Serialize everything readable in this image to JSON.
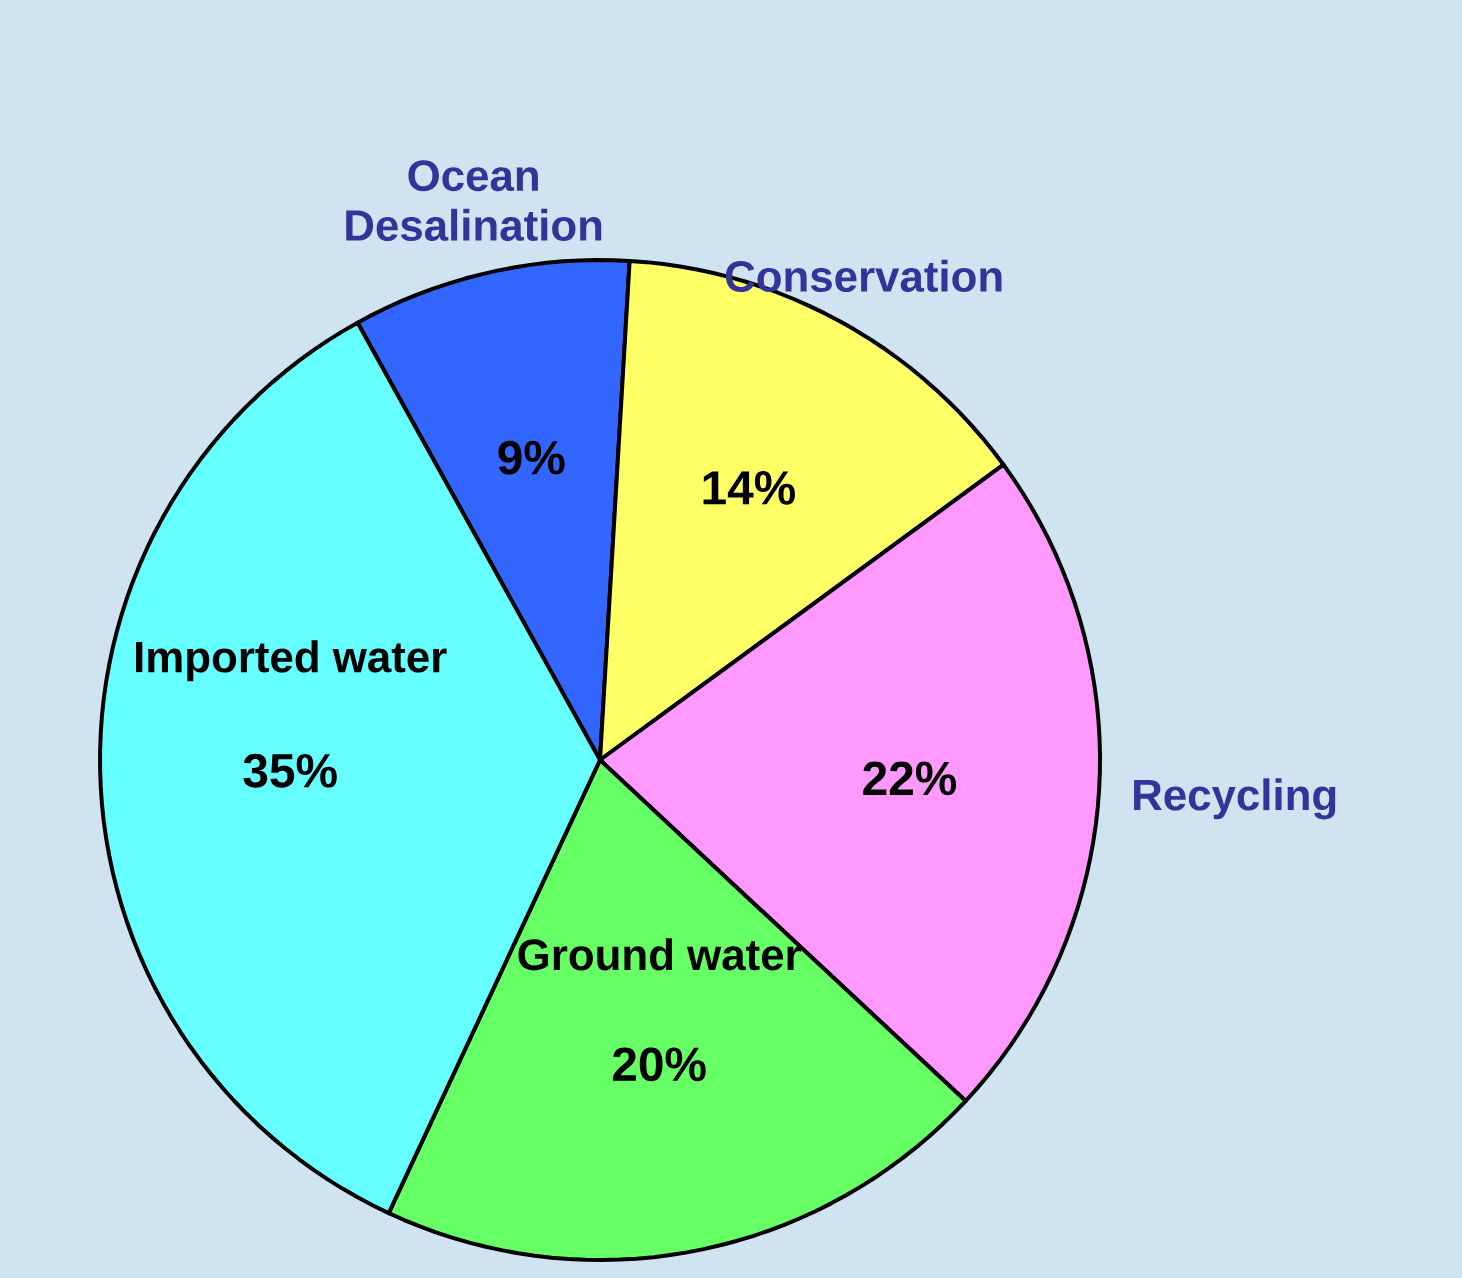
{
  "chart_data": {
    "type": "pie",
    "categories": [
      "Ocean Desalination",
      "Conservation",
      "Recycling",
      "Ground water",
      "Imported water"
    ],
    "values": [
      9,
      14,
      22,
      20,
      35
    ],
    "value_labels": [
      "9%",
      "14%",
      "22%",
      "20%",
      "35%"
    ],
    "colors": [
      "#3366ff",
      "#ffff66",
      "#ff99ff",
      "#66ff66",
      "#66ffff"
    ]
  }
}
